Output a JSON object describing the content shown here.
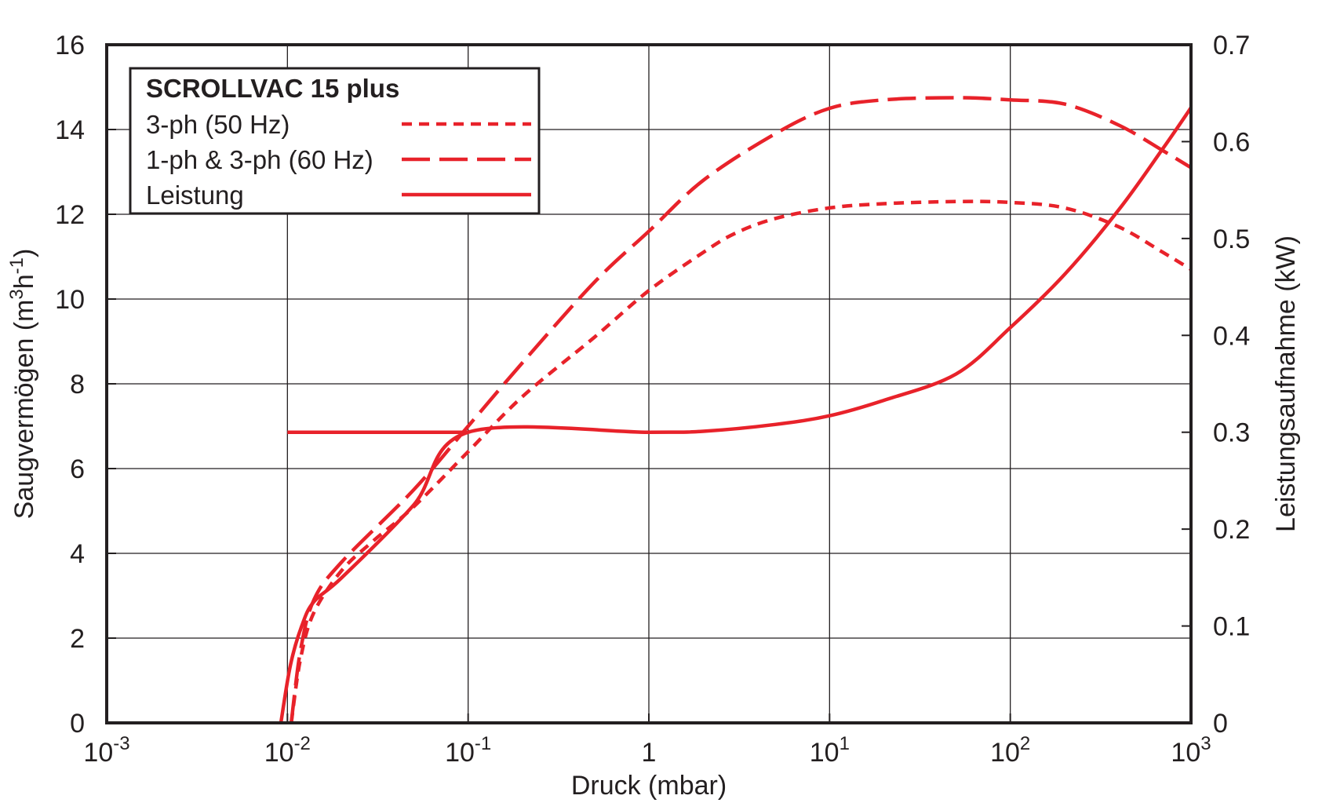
{
  "chart_data": {
    "type": "line",
    "x_scale": "log",
    "grid": true,
    "legend_position": "top-left",
    "xlabel": "Druck (mbar)",
    "ylabel_parts": [
      "Saugvermögen (m",
      "3",
      "h",
      "-1",
      ")"
    ],
    "y2label": "Leistungsaufnahme (kW)",
    "xlim": [
      0.001,
      1000
    ],
    "ylim": [
      0,
      16
    ],
    "y2lim": [
      0,
      0.7
    ],
    "x_ticks": [
      {
        "value": 0.001,
        "base": "10",
        "exp": "-3"
      },
      {
        "value": 0.01,
        "base": "10",
        "exp": "-2"
      },
      {
        "value": 0.1,
        "base": "10",
        "exp": "-1"
      },
      {
        "value": 1,
        "base": "1",
        "exp": ""
      },
      {
        "value": 10,
        "base": "10",
        "exp": "1"
      },
      {
        "value": 100,
        "base": "10",
        "exp": "2"
      },
      {
        "value": 1000,
        "base": "10",
        "exp": "3"
      }
    ],
    "y_ticks": [
      "0",
      "2",
      "4",
      "6",
      "8",
      "10",
      "12",
      "14",
      "16"
    ],
    "y2_ticks": [
      "0",
      "0.1",
      "0.2",
      "0.3",
      "0.4",
      "0.5",
      "0.6",
      "0.7"
    ],
    "legend_title": "SCROLLVAC 15 plus",
    "series": [
      {
        "name": "3-ph (50 Hz)",
        "style": "dotted",
        "axis": "left",
        "color": "#e8222a",
        "points": [
          [
            0.0105,
            0
          ],
          [
            0.0118,
            1.5
          ],
          [
            0.014,
            2.6
          ],
          [
            0.02,
            3.6
          ],
          [
            0.03,
            4.3
          ],
          [
            0.05,
            5.1
          ],
          [
            0.1,
            6.4
          ],
          [
            0.2,
            7.7
          ],
          [
            0.5,
            9.1
          ],
          [
            1,
            10.2
          ],
          [
            2,
            11.1
          ],
          [
            3,
            11.55
          ],
          [
            5,
            11.9
          ],
          [
            10,
            12.15
          ],
          [
            20,
            12.25
          ],
          [
            50,
            12.3
          ],
          [
            100,
            12.28
          ],
          [
            200,
            12.15
          ],
          [
            400,
            11.7
          ],
          [
            700,
            11.1
          ],
          [
            1000,
            10.7
          ]
        ]
      },
      {
        "name": "1-ph & 3-ph (60 Hz)",
        "style": "dashed",
        "axis": "left",
        "color": "#e8222a",
        "points": [
          [
            0.0105,
            0
          ],
          [
            0.0118,
            1.7
          ],
          [
            0.014,
            2.9
          ],
          [
            0.02,
            3.8
          ],
          [
            0.05,
            5.5
          ],
          [
            0.1,
            7.0
          ],
          [
            0.2,
            8.5
          ],
          [
            0.5,
            10.4
          ],
          [
            1,
            11.6
          ],
          [
            2,
            12.8
          ],
          [
            5,
            13.9
          ],
          [
            10,
            14.5
          ],
          [
            20,
            14.7
          ],
          [
            50,
            14.75
          ],
          [
            100,
            14.7
          ],
          [
            200,
            14.6
          ],
          [
            400,
            14.1
          ],
          [
            700,
            13.5
          ],
          [
            1000,
            13.1
          ]
        ]
      },
      {
        "name": "Leistung",
        "style": "solid",
        "axis": "right",
        "color": "#e8222a",
        "points": [
          [
            0.0092,
            0
          ],
          [
            0.0104,
            0.06
          ],
          [
            0.012,
            0.1
          ],
          [
            0.014,
            0.125
          ],
          [
            0.02,
            0.15
          ],
          [
            0.05,
            0.225
          ],
          [
            0.1,
            0.3
          ],
          [
            1,
            0.3
          ],
          [
            2,
            0.301
          ],
          [
            5,
            0.308
          ],
          [
            10,
            0.317
          ],
          [
            20,
            0.333
          ],
          [
            50,
            0.36
          ],
          [
            100,
            0.408
          ],
          [
            200,
            0.463
          ],
          [
            400,
            0.53
          ],
          [
            700,
            0.593
          ],
          [
            1000,
            0.635
          ]
        ]
      },
      {
        "name": "",
        "style": "solid",
        "axis": "right",
        "color": "#e8222a",
        "points": [
          [
            0.01,
            0.3
          ],
          [
            0.1,
            0.3
          ]
        ]
      }
    ]
  }
}
